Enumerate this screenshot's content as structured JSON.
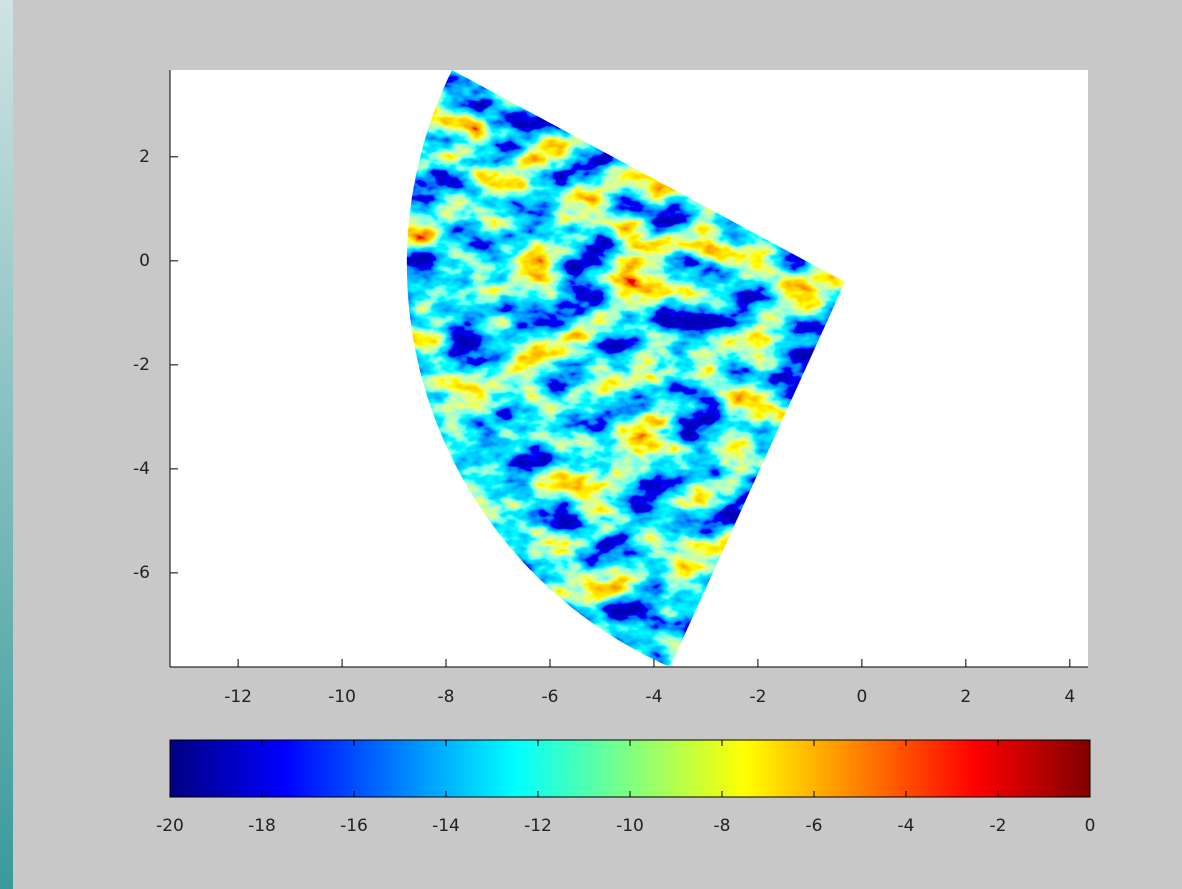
{
  "chart_data": {
    "type": "image",
    "xlim": [
      -13.31,
      4.35
    ],
    "ylim": [
      -7.81,
      3.67
    ],
    "xticks": [
      -12,
      -10,
      -8,
      -6,
      -4,
      -2,
      0,
      2,
      4
    ],
    "yticks": [
      -6,
      -4,
      -2,
      0,
      2
    ],
    "colorbar": {
      "clim": [
        -20,
        0
      ],
      "ticks": [
        -20,
        -18,
        -16,
        -14,
        -12,
        -10,
        -8,
        -6,
        -4,
        -2,
        0
      ],
      "colormap": [
        "#000080",
        "#0000ff",
        "#0080ff",
        "#00ffff",
        "#80ff80",
        "#ffff00",
        "#ff8000",
        "#ff0000",
        "#800000"
      ]
    }
  }
}
